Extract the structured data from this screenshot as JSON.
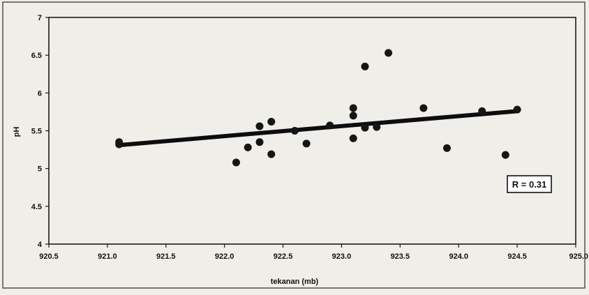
{
  "chart_data": {
    "type": "scatter",
    "title": "",
    "xlabel": "tekanan (mb)",
    "ylabel": "pH",
    "xlim": [
      920.5,
      925.0
    ],
    "ylim": [
      4,
      7
    ],
    "x_ticks": [
      "920.5",
      "921.0",
      "921.5",
      "922.0",
      "922.5",
      "923.0",
      "923.5",
      "924.0",
      "924.5",
      "925.0"
    ],
    "y_ticks": [
      "4",
      "4.5",
      "5",
      "5.5",
      "6",
      "6.5",
      "7"
    ],
    "annotation": "R = 0.31",
    "grid": false,
    "legend": "none",
    "colors": {
      "point": "#151515",
      "trend": "#0d0d0d",
      "frame": "#1a1a1a",
      "background": "#efeee9"
    },
    "trendline": {
      "x": [
        921.1,
        924.5
      ],
      "y": [
        5.31,
        5.76
      ]
    },
    "points": [
      {
        "x": 921.1,
        "y": 5.35
      },
      {
        "x": 921.1,
        "y": 5.32
      },
      {
        "x": 922.1,
        "y": 5.08
      },
      {
        "x": 922.2,
        "y": 5.28
      },
      {
        "x": 922.3,
        "y": 5.35
      },
      {
        "x": 922.3,
        "y": 5.56
      },
      {
        "x": 922.4,
        "y": 5.62
      },
      {
        "x": 922.4,
        "y": 5.19
      },
      {
        "x": 922.6,
        "y": 5.5
      },
      {
        "x": 922.7,
        "y": 5.33
      },
      {
        "x": 922.9,
        "y": 5.57
      },
      {
        "x": 923.1,
        "y": 5.8
      },
      {
        "x": 923.1,
        "y": 5.7
      },
      {
        "x": 923.1,
        "y": 5.4
      },
      {
        "x": 923.2,
        "y": 6.35
      },
      {
        "x": 923.2,
        "y": 5.54
      },
      {
        "x": 923.3,
        "y": 5.55
      },
      {
        "x": 923.4,
        "y": 6.53
      },
      {
        "x": 923.7,
        "y": 5.8
      },
      {
        "x": 923.9,
        "y": 5.27
      },
      {
        "x": 924.2,
        "y": 5.76
      },
      {
        "x": 924.4,
        "y": 5.18
      },
      {
        "x": 924.5,
        "y": 5.78
      }
    ]
  }
}
